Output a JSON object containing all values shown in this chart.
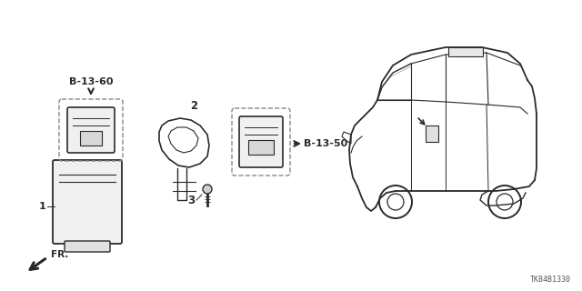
{
  "part_number": "TK84B1330",
  "background_color": "#ffffff",
  "line_color": "#2a2a2a",
  "gray_color": "#888888",
  "label_b1360": "B-13-60",
  "label_b1350": "B-13-50",
  "label_fr": "FR.",
  "num1": "1",
  "num2": "2",
  "num3": "3"
}
